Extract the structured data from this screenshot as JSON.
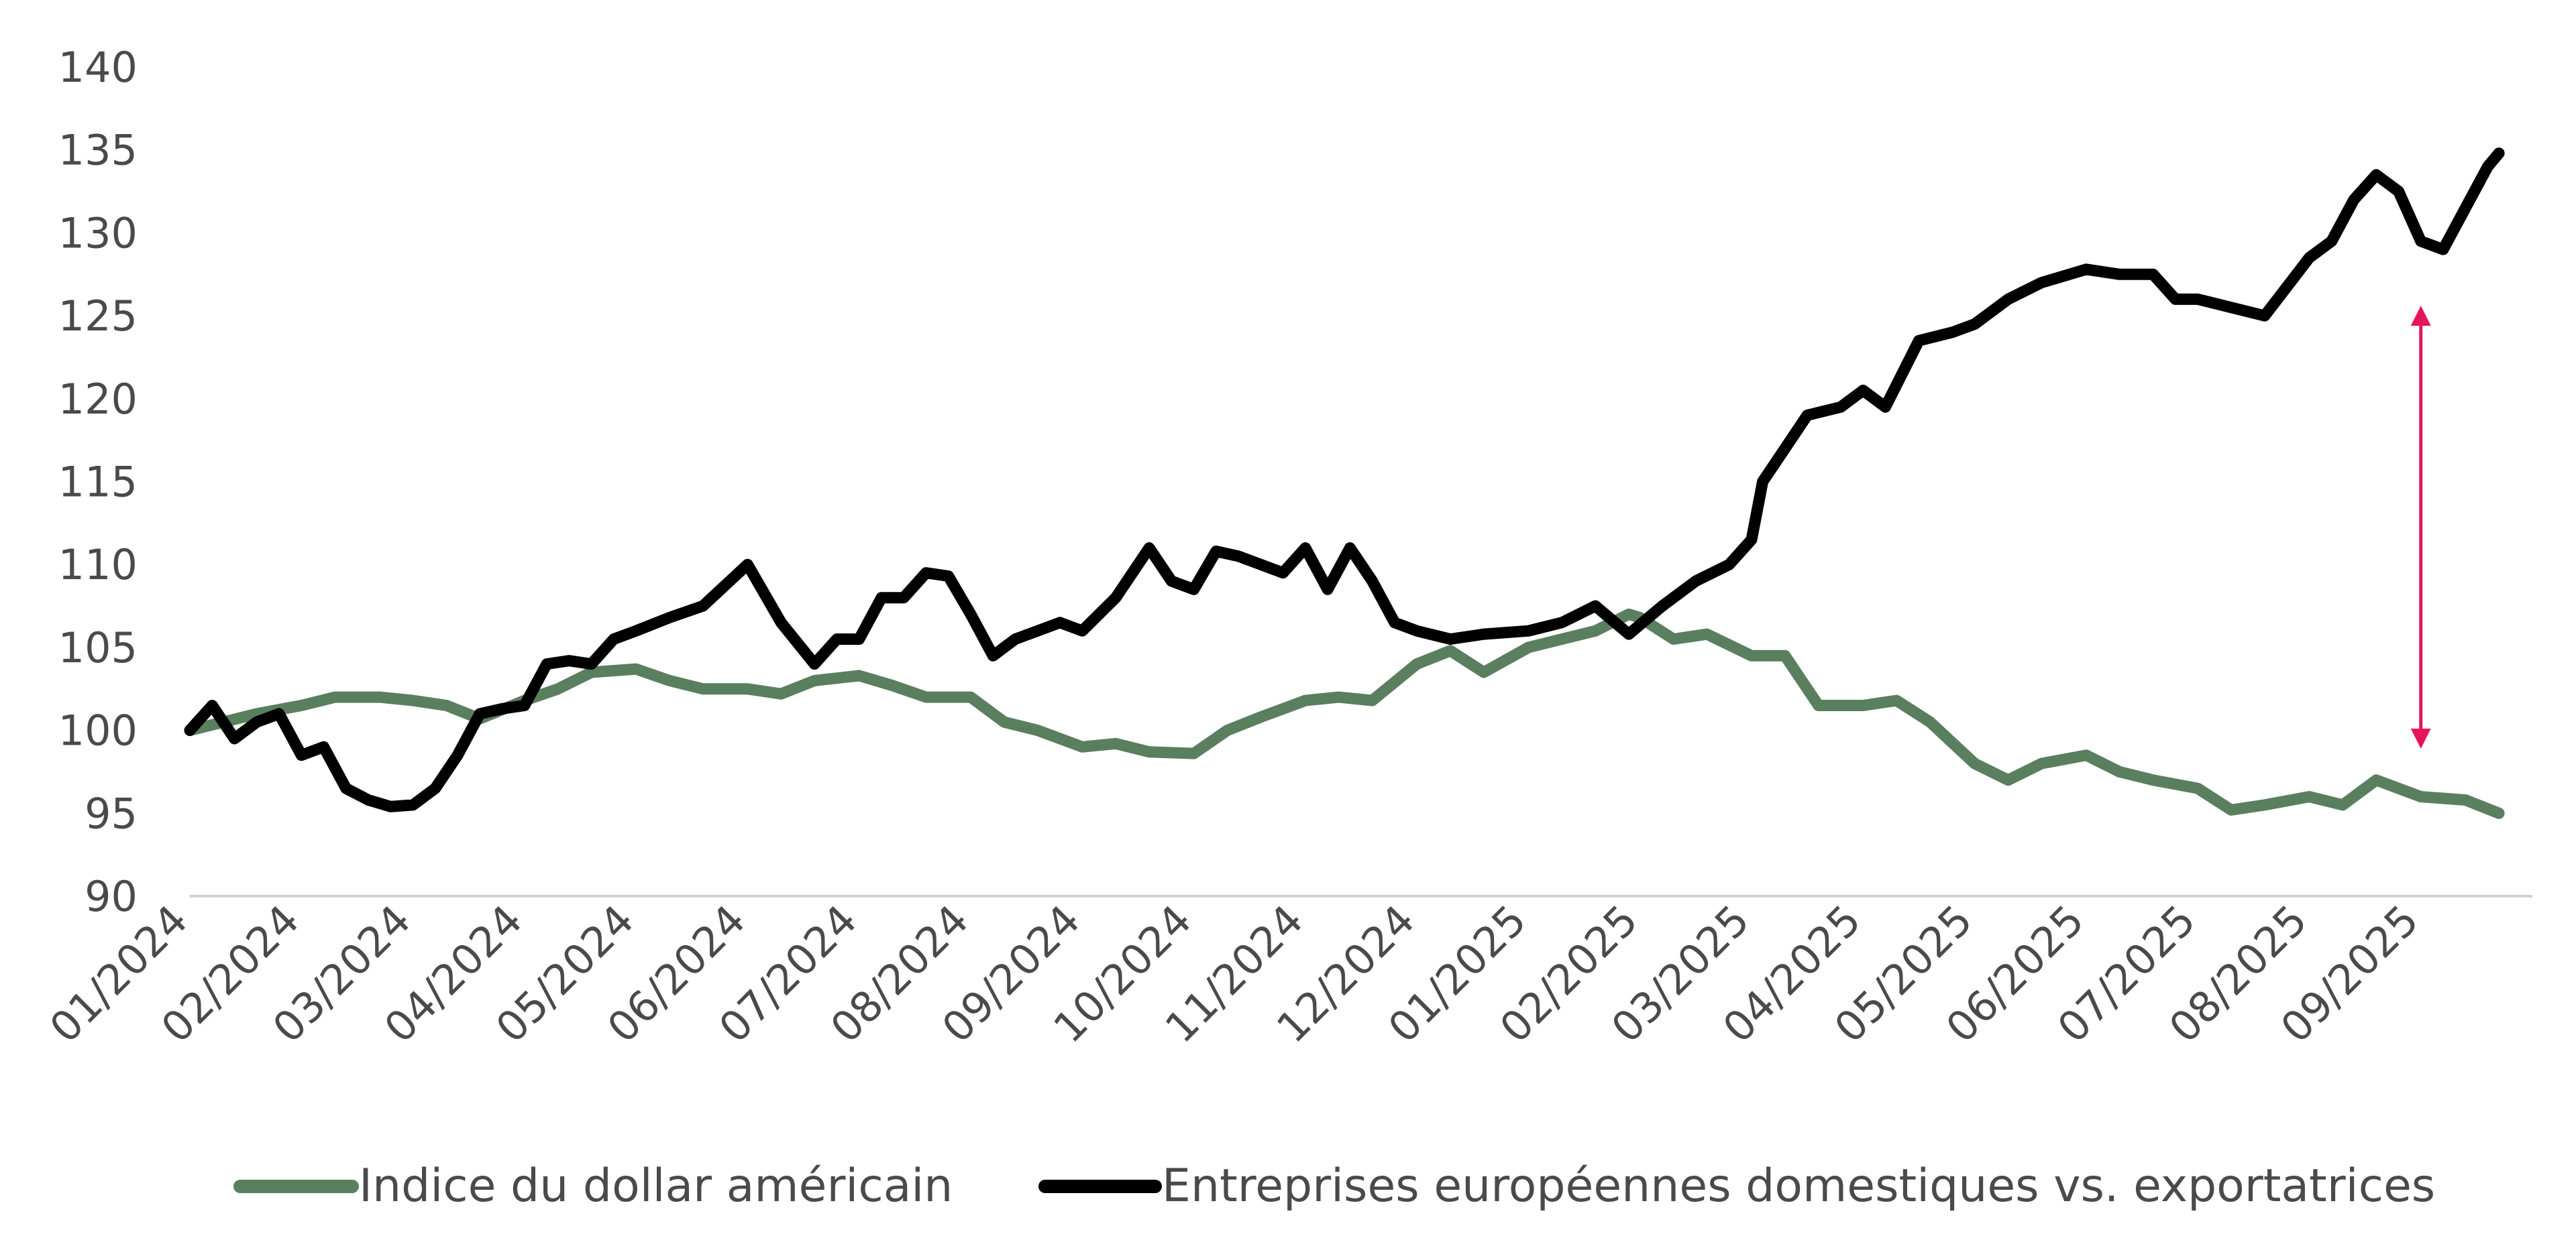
{
  "chart_data": {
    "type": "line",
    "title": "",
    "xlabel": "",
    "ylabel": "",
    "ylim": [
      90,
      140
    ],
    "yticks": [
      90,
      95,
      100,
      105,
      110,
      115,
      120,
      125,
      130,
      135,
      140
    ],
    "ytick_labels": [
      "90",
      "95",
      "100",
      "105",
      "110",
      "115",
      "120",
      "125",
      "130",
      "135",
      "140"
    ],
    "categories": [
      "01/2024",
      "02/2024",
      "03/2024",
      "04/2024",
      "05/2024",
      "06/2024",
      "07/2024",
      "08/2024",
      "09/2024",
      "10/2024",
      "11/2024",
      "12/2024",
      "01/2025",
      "02/2025",
      "03/2025",
      "04/2025",
      "05/2025",
      "06/2025",
      "07/2025",
      "08/2025",
      "09/2025"
    ],
    "grid": false,
    "legend_position": "bottom",
    "series": [
      {
        "name": "Indice du dollar américain",
        "color": "#5a7f5f",
        "x": [
          0,
          0.3,
          0.6,
          1.0,
          1.3,
          1.7,
          2.0,
          2.3,
          2.6,
          3.0,
          3.3,
          3.6,
          4.0,
          4.3,
          4.6,
          5.0,
          5.3,
          5.6,
          6.0,
          6.3,
          6.6,
          7.0,
          7.3,
          7.6,
          8.0,
          8.3,
          8.6,
          9.0,
          9.3,
          9.6,
          10.0,
          10.3,
          10.6,
          11.0,
          11.3,
          11.6,
          12.0,
          12.3,
          12.6,
          12.9,
          13.0,
          13.3,
          13.6,
          14.0,
          14.3,
          14.6,
          15.0,
          15.3,
          15.6,
          16.0,
          16.3,
          16.6,
          17.0,
          17.3,
          17.6,
          18.0,
          18.3,
          18.6,
          19.0,
          19.3,
          19.6,
          20.0,
          20.4,
          20.7
        ],
        "values": [
          100,
          100.5,
          101.0,
          101.5,
          102.0,
          102.0,
          101.8,
          101.5,
          100.7,
          101.8,
          102.5,
          103.5,
          103.7,
          103.0,
          102.5,
          102.5,
          102.2,
          103.0,
          103.3,
          102.7,
          102.0,
          102.0,
          100.5,
          100.0,
          99.0,
          99.2,
          98.7,
          98.6,
          100.0,
          100.8,
          101.8,
          102.0,
          101.8,
          104.0,
          104.8,
          103.5,
          105.0,
          105.5,
          106.0,
          107.0,
          106.8,
          105.5,
          105.8,
          104.5,
          104.5,
          101.5,
          101.5,
          101.8,
          100.5,
          98.0,
          97.0,
          98.0,
          98.5,
          97.5,
          97.0,
          96.5,
          95.2,
          95.5,
          96.0,
          95.5,
          97.0,
          96.0,
          95.8,
          95.0
        ]
      },
      {
        "name": "Entreprises européennes domestiques vs. exportatrices",
        "color": "#000000",
        "x": [
          0,
          0.2,
          0.4,
          0.6,
          0.8,
          1.0,
          1.2,
          1.4,
          1.6,
          1.8,
          2.0,
          2.2,
          2.4,
          2.6,
          2.8,
          3.0,
          3.2,
          3.4,
          3.6,
          3.8,
          4.0,
          4.3,
          4.6,
          5.0,
          5.3,
          5.6,
          5.8,
          6.0,
          6.2,
          6.4,
          6.6,
          6.8,
          7.0,
          7.2,
          7.4,
          7.6,
          7.8,
          8.0,
          8.3,
          8.6,
          8.8,
          9.0,
          9.2,
          9.4,
          9.6,
          9.8,
          10.0,
          10.2,
          10.4,
          10.6,
          10.8,
          11.0,
          11.3,
          11.6,
          12.0,
          12.3,
          12.6,
          12.9,
          13.2,
          13.5,
          13.8,
          14.0,
          14.1,
          14.3,
          14.5,
          14.8,
          15.0,
          15.2,
          15.5,
          15.8,
          16.0,
          16.3,
          16.6,
          17.0,
          17.3,
          17.6,
          17.8,
          18.0,
          18.3,
          18.6,
          19.0,
          19.2,
          19.4,
          19.6,
          19.8,
          20.0,
          20.2,
          20.4,
          20.6,
          20.7
        ],
        "values": [
          100,
          101.5,
          99.5,
          100.5,
          101.0,
          98.5,
          99.0,
          96.5,
          95.8,
          95.4,
          95.5,
          96.5,
          98.5,
          101.0,
          101.3,
          101.5,
          104.0,
          104.2,
          104.0,
          105.5,
          106.0,
          106.8,
          107.5,
          110.0,
          106.5,
          104.0,
          105.5,
          105.5,
          108.0,
          108.0,
          109.5,
          109.3,
          107.0,
          104.5,
          105.5,
          106.0,
          106.5,
          106.0,
          108.0,
          111.0,
          109.0,
          108.5,
          110.8,
          110.5,
          110.0,
          109.5,
          111.0,
          108.5,
          111.0,
          109.0,
          106.5,
          106.0,
          105.5,
          105.8,
          106.0,
          106.5,
          107.5,
          105.8,
          107.5,
          109.0,
          110.0,
          111.5,
          115.0,
          117.0,
          119.0,
          119.5,
          120.5,
          119.5,
          123.5,
          124.0,
          124.5,
          126.0,
          127.0,
          127.8,
          127.5,
          127.5,
          126.0,
          126.0,
          125.5,
          125.0,
          128.5,
          129.5,
          132.0,
          133.5,
          132.5,
          129.5,
          129.0,
          131.5,
          134.0,
          134.8
        ]
      }
    ],
    "annotations": [
      {
        "type": "double-arrow",
        "color": "#e8145a",
        "x": 20.0,
        "y_from": 99.5,
        "y_to": 125.0
      }
    ]
  }
}
